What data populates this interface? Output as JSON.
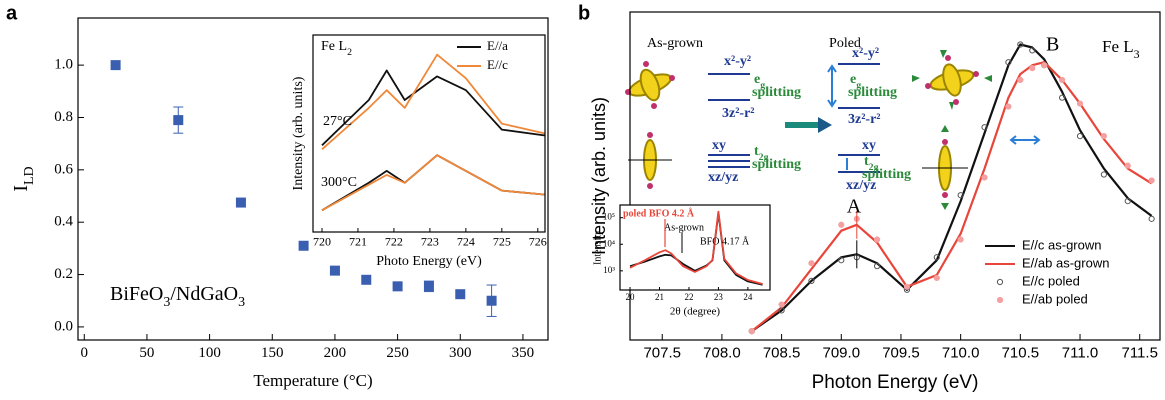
{
  "panel_labels": [
    "a",
    "b"
  ],
  "diagram": {
    "as_grown": "As-grown",
    "poled": "Poled",
    "left": {
      "upper": "x²-y²",
      "eg": [
        "e",
        "g"
      ],
      "eg_split": "splitting",
      "lower": "3z²-r²",
      "xy": "xy",
      "t2g": [
        "t",
        "2g"
      ],
      "t2g_split": "splitting",
      "xzyz": "xz/yz"
    },
    "right": {
      "upper": "x²-y²",
      "eg": [
        "e",
        "g"
      ],
      "eg_split": "splitting",
      "lower": "3z²-r²",
      "xy": "xy",
      "t2g": [
        "t",
        "2g"
      ],
      "t2g_split": "splitting",
      "xzyz": "xz/yz"
    }
  },
  "chart_data": [
    {
      "type": "scatter",
      "xlabel": "Temperature (°C)",
      "ylabel": [
        "I",
        "LD"
      ],
      "annotation": [
        "BiFeO",
        "3",
        "/NdGaO",
        "3"
      ],
      "x": [
        25,
        75,
        125,
        175,
        200,
        225,
        250,
        275,
        300,
        325
      ],
      "values": [
        1.0,
        0.79,
        0.475,
        0.31,
        0.215,
        0.18,
        0.155,
        0.155,
        0.125,
        0.1
      ],
      "errors": [
        null,
        0.05,
        null,
        null,
        null,
        null,
        null,
        0.02,
        null,
        0.06
      ],
      "color": "#3a5fb0",
      "xlim": [
        -5,
        370
      ],
      "ylim": [
        -0.05,
        1.18
      ],
      "xticks": [
        0,
        50,
        100,
        150,
        200,
        250,
        300,
        350
      ],
      "yticks": [
        {
          "value": 0,
          "label": "0.0"
        },
        0.2,
        0.4,
        0.6,
        0.8,
        {
          "value": 1,
          "label": "1.0"
        }
      ]
    },
    {
      "type": "line",
      "xlabel": "Photo Energy (eV)",
      "ylabel": "Intensity (arb. units)",
      "title": [
        "Fe L",
        "2"
      ],
      "annotations": [
        "27°C",
        "300°C"
      ],
      "legend": "upper right",
      "x": [
        720,
        721.3,
        721.8,
        722.3,
        723.2,
        724,
        725,
        726.2
      ],
      "series": [
        {
          "name": "E//a",
          "color": "#111111",
          "values": [
            0.44,
            0.67,
            0.82,
            0.67,
            0.79,
            0.72,
            0.52,
            0.49
          ]
        },
        {
          "name": "E//c",
          "color": "#f0883a",
          "values": [
            0.42,
            0.63,
            0.72,
            0.63,
            0.9,
            0.78,
            0.55,
            0.5
          ]
        },
        {
          "color": "#111111",
          "values": [
            0.11,
            0.25,
            0.31,
            0.25,
            0.39,
            0.31,
            0.21,
            0.19
          ]
        },
        {
          "color": "#f0883a",
          "values": [
            0.11,
            0.24,
            0.29,
            0.25,
            0.39,
            0.31,
            0.21,
            0.19
          ]
        }
      ],
      "xlim": [
        719.75,
        726.2
      ],
      "ylim": [
        0,
        1
      ],
      "xticks": [
        720,
        721,
        722,
        723,
        724,
        725,
        726
      ]
    },
    {
      "type": "line",
      "xlabel": "Photon Energy (eV)",
      "ylabel": "Intensity (arb. units)",
      "annotations": [
        "A",
        "B",
        [
          "Fe L",
          "3"
        ]
      ],
      "legend": "lower right",
      "x": [
        708.25,
        708.5,
        708.75,
        709.0,
        709.13,
        709.3,
        709.55,
        709.8,
        710.0,
        710.2,
        710.4,
        710.5,
        710.6,
        710.7,
        710.85,
        711.0,
        711.2,
        711.4,
        711.6
      ],
      "series": [
        {
          "name": "E//c as-grown",
          "color": "#111111",
          "style": "line",
          "values": [
            0.03,
            0.1,
            0.2,
            0.28,
            0.29,
            0.26,
            0.17,
            0.27,
            0.47,
            0.7,
            0.93,
            1.0,
            0.99,
            0.95,
            0.84,
            0.71,
            0.58,
            0.48,
            0.42
          ]
        },
        {
          "name": "E//ab as-grown",
          "color": "#e8463a",
          "style": "line",
          "values": [
            0.03,
            0.11,
            0.24,
            0.37,
            0.39,
            0.33,
            0.18,
            0.22,
            0.36,
            0.58,
            0.82,
            0.9,
            0.93,
            0.94,
            0.88,
            0.8,
            0.68,
            0.58,
            0.53
          ]
        },
        {
          "name": "E//c poled",
          "color": "#555555",
          "style": "markers",
          "values": [
            0.03,
            0.1,
            0.2,
            0.27,
            0.28,
            0.25,
            0.17,
            0.28,
            0.49,
            0.72,
            0.94,
            1.0,
            0.98,
            0.93,
            0.82,
            0.69,
            0.56,
            0.47,
            0.41
          ]
        },
        {
          "name": "E//ab poled",
          "color": "#f4a0a0",
          "style": "markers",
          "values": [
            0.03,
            0.12,
            0.26,
            0.39,
            0.41,
            0.34,
            0.18,
            0.21,
            0.34,
            0.55,
            0.79,
            0.88,
            0.92,
            0.93,
            0.88,
            0.8,
            0.69,
            0.59,
            0.54
          ]
        }
      ],
      "xlim": [
        707.23,
        711.67
      ],
      "ylim": [
        0,
        1.11
      ],
      "xticks": [
        707.5,
        {
          "value": 708,
          "label": "708.0"
        },
        708.5,
        {
          "value": 709,
          "label": "709.0"
        },
        709.5,
        {
          "value": 710,
          "label": "710.0"
        },
        710.5,
        {
          "value": 711,
          "label": "711.0"
        },
        711.5
      ]
    },
    {
      "type": "line",
      "log_y": true,
      "xlabel": "2θ (degree)",
      "ylabel": "Intensity",
      "annotations": [
        "poled BFO 4.2 Å",
        "As-grown",
        "BFO 4.17 Å"
      ],
      "x": [
        20,
        20.5,
        21,
        21.2,
        21.4,
        21.8,
        22.2,
        22.6,
        22.8,
        23,
        23.2,
        23.6,
        24,
        24.5
      ],
      "series": [
        {
          "color": "#111111",
          "values": [
            1500,
            2200,
            3500,
            4000,
            3800,
            1800,
            1000,
            1600,
            2500,
            150000,
            2500,
            700,
            400,
            300
          ]
        },
        {
          "color": "#e8463a",
          "values": [
            1300,
            2500,
            5000,
            6000,
            4500,
            1500,
            900,
            1500,
            2600,
            170000,
            2800,
            800,
            450,
            320
          ]
        }
      ],
      "xlim": [
        19.66,
        24.75
      ],
      "ylim": [
        190,
        300000
      ],
      "xticks": [
        20,
        21,
        22,
        23,
        24
      ],
      "yticks": [
        {
          "value": 1000,
          "label": "10³"
        },
        {
          "value": 10000,
          "label": "10⁴"
        },
        {
          "value": 100000,
          "label": "10⁵"
        }
      ]
    }
  ]
}
